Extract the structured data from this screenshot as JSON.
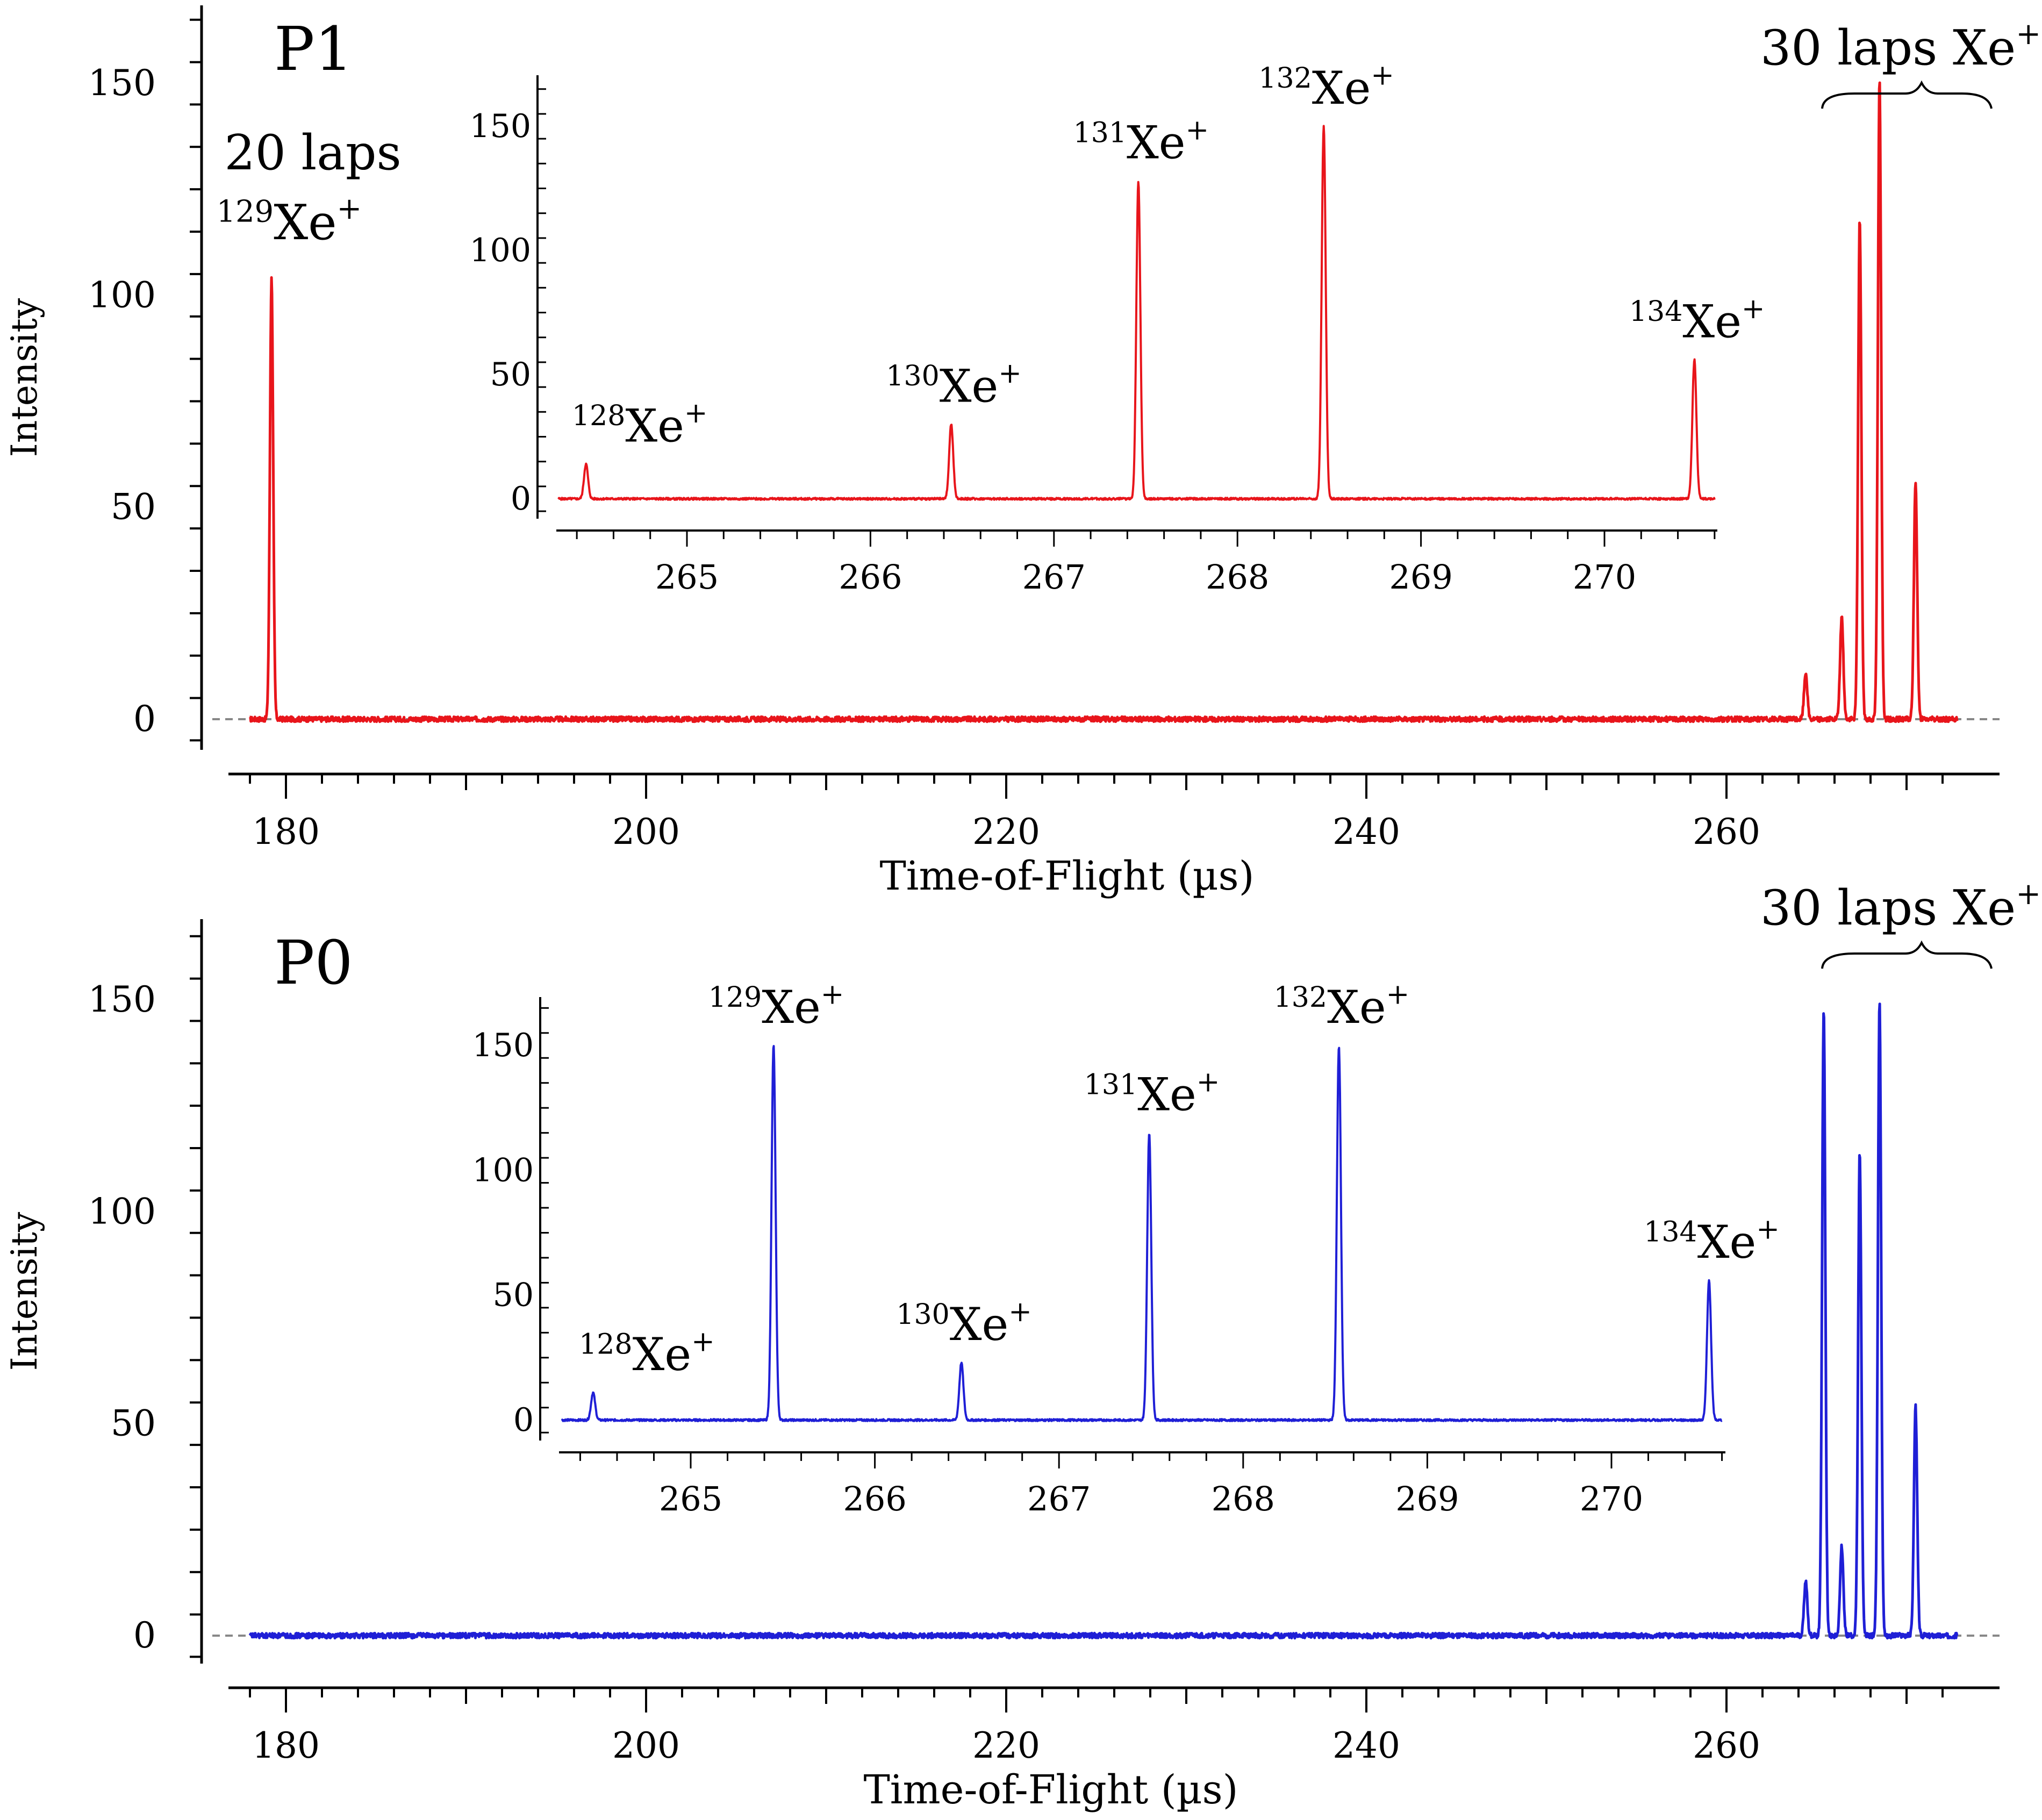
{
  "chart_data": [
    {
      "type": "line",
      "panel_label": "P1",
      "color": "#e8151b",
      "xlabel": "Time-of-Flight (µs)",
      "ylabel": "Intensity",
      "xlim": [
        177,
        273
      ],
      "ylim": [
        -8,
        168
      ],
      "x_ticks": [
        "180",
        "200",
        "220",
        "240",
        "260"
      ],
      "y_ticks": [
        "0",
        "50",
        "100",
        "150"
      ],
      "annotations": [
        {
          "id": "laps20",
          "text": "20 laps"
        },
        {
          "id": "iso129",
          "mass": "129",
          "text": "Xe",
          "charge": "+"
        },
        {
          "id": "laps30",
          "text": "30 laps Xe",
          "charge": "+"
        }
      ],
      "peaks": [
        {
          "x": 179.2,
          "y": 104
        },
        {
          "x": 264.4,
          "y": 11
        },
        {
          "x": 266.4,
          "y": 24
        },
        {
          "x": 267.4,
          "y": 118
        },
        {
          "x": 268.5,
          "y": 151
        },
        {
          "x": 270.5,
          "y": 56
        }
      ],
      "inset": {
        "xlim": [
          264.3,
          270.6
        ],
        "ylim": [
          -5,
          170
        ],
        "x_ticks": [
          "265",
          "266",
          "267",
          "268",
          "269",
          "270"
        ],
        "y_ticks": [
          "0",
          "50",
          "100",
          "150"
        ],
        "peaks": [
          {
            "x": 264.45,
            "y": 14,
            "mass": "128",
            "text": "Xe",
            "charge": "+"
          },
          {
            "x": 266.44,
            "y": 30,
            "mass": "130",
            "text": "Xe",
            "charge": "+"
          },
          {
            "x": 267.46,
            "y": 128,
            "mass": "131",
            "text": "Xe",
            "charge": "+"
          },
          {
            "x": 268.47,
            "y": 150,
            "mass": "132",
            "text": "Xe",
            "charge": "+"
          },
          {
            "x": 270.49,
            "y": 56,
            "mass": "134",
            "text": "Xe",
            "charge": "+"
          }
        ]
      }
    },
    {
      "type": "line",
      "panel_label": "P0",
      "color": "#1f1fd6",
      "xlabel": "Time-of-Flight (µs)",
      "ylabel": "Intensity",
      "xlim": [
        177,
        273
      ],
      "ylim": [
        -8,
        168
      ],
      "x_ticks": [
        "180",
        "200",
        "220",
        "240",
        "260"
      ],
      "y_ticks": [
        "0",
        "50",
        "100",
        "150"
      ],
      "annotations": [
        {
          "id": "laps30",
          "text": "30 laps Xe",
          "charge": "+"
        }
      ],
      "peaks": [
        {
          "x": 264.4,
          "y": 13
        },
        {
          "x": 265.4,
          "y": 148
        },
        {
          "x": 266.4,
          "y": 21
        },
        {
          "x": 267.4,
          "y": 114
        },
        {
          "x": 268.5,
          "y": 150
        },
        {
          "x": 270.5,
          "y": 54
        }
      ],
      "inset": {
        "xlim": [
          264.3,
          270.6
        ],
        "ylim": [
          -5,
          170
        ],
        "x_ticks": [
          "265",
          "266",
          "267",
          "268",
          "269",
          "270"
        ],
        "y_ticks": [
          "0",
          "50",
          "100",
          "150"
        ],
        "peaks": [
          {
            "x": 264.47,
            "y": 11,
            "mass": "128",
            "text": "Xe",
            "charge": "+"
          },
          {
            "x": 265.45,
            "y": 150,
            "mass": "129",
            "text": "Xe",
            "charge": "+"
          },
          {
            "x": 266.47,
            "y": 23,
            "mass": "130",
            "text": "Xe",
            "charge": "+"
          },
          {
            "x": 267.49,
            "y": 115,
            "mass": "131",
            "text": "Xe",
            "charge": "+"
          },
          {
            "x": 268.52,
            "y": 150,
            "mass": "132",
            "text": "Xe",
            "charge": "+"
          },
          {
            "x": 270.53,
            "y": 56,
            "mass": "134",
            "text": "Xe",
            "charge": "+"
          }
        ]
      }
    }
  ]
}
